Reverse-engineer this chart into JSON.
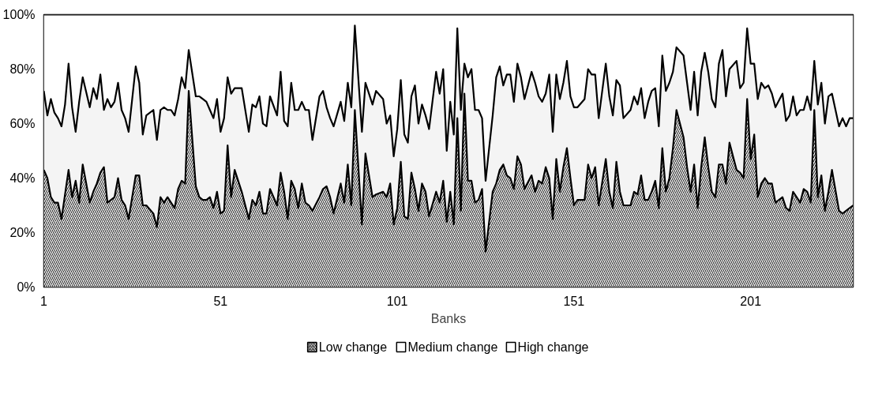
{
  "chart_data": {
    "type": "area",
    "stacked": true,
    "xlabel": "Banks",
    "x": [
      1,
      2,
      3,
      4,
      5,
      6,
      7,
      8,
      9,
      10,
      11,
      12,
      14,
      15,
      16,
      17,
      18,
      19,
      20,
      21,
      22,
      23,
      24,
      25,
      27,
      28,
      29,
      30,
      32,
      33,
      34,
      35,
      36,
      37,
      38,
      39,
      40,
      41,
      42,
      44,
      45,
      46,
      47,
      48,
      49,
      50,
      51,
      52,
      53,
      54,
      55,
      57,
      59,
      60,
      61,
      62,
      63,
      64,
      65,
      67,
      68,
      69,
      70,
      71,
      72,
      73,
      74,
      75,
      76,
      77,
      79,
      80,
      81,
      82,
      83,
      85,
      86,
      87,
      88,
      89,
      91,
      92,
      94,
      95,
      97,
      98,
      99,
      100,
      101,
      102,
      103,
      104,
      105,
      106,
      107,
      108,
      109,
      110,
      112,
      113,
      114,
      115,
      116,
      117,
      118,
      119,
      120,
      121,
      122,
      123,
      124,
      125,
      126,
      128,
      129,
      130,
      131,
      132,
      133,
      134,
      135,
      136,
      137,
      139,
      140,
      141,
      142,
      143,
      144,
      145,
      146,
      147,
      148,
      149,
      150,
      151,
      152,
      154,
      155,
      156,
      157,
      158,
      160,
      161,
      162,
      163,
      164,
      165,
      167,
      168,
      169,
      170,
      171,
      172,
      173,
      174,
      175,
      176,
      177,
      178,
      179,
      180,
      182,
      183,
      184,
      185,
      186,
      187,
      188,
      189,
      190,
      191,
      192,
      193,
      194,
      195,
      197,
      198,
      199,
      200,
      201,
      202,
      203,
      204,
      205,
      206,
      207,
      208,
      210,
      211,
      212,
      213,
      214,
      215,
      216,
      217,
      218,
      219,
      220,
      221,
      222,
      223,
      224,
      226,
      227,
      228,
      229,
      230
    ],
    "series": [
      {
        "name": "Low change",
        "color": "#000000",
        "values": [
          43,
          40,
          33,
          31,
          31,
          25,
          34,
          43,
          33,
          39,
          31,
          45,
          31,
          35,
          38,
          42,
          44,
          31,
          32,
          33,
          40,
          32,
          30,
          25,
          41,
          41,
          30,
          30,
          27,
          22,
          33,
          31,
          33,
          31,
          29,
          36,
          39,
          38,
          72,
          37,
          33,
          32,
          32,
          33,
          29,
          35,
          27,
          28,
          52,
          33,
          43,
          35,
          25,
          32,
          30,
          35,
          27,
          27,
          36,
          30,
          42,
          35,
          25,
          39,
          36,
          29,
          38,
          31,
          30,
          28,
          33,
          36,
          37,
          33,
          27,
          38,
          31,
          45,
          30,
          65,
          23,
          49,
          33,
          34,
          35,
          33,
          38,
          23,
          29,
          46,
          26,
          25,
          42,
          36,
          28,
          38,
          35,
          26,
          35,
          31,
          39,
          24,
          35,
          23,
          62,
          28,
          71,
          39,
          39,
          31,
          32,
          36,
          13,
          35,
          38,
          43,
          45,
          41,
          40,
          36,
          48,
          45,
          36,
          41,
          35,
          39,
          38,
          44,
          40,
          25,
          47,
          35,
          44,
          51,
          40,
          30,
          32,
          32,
          45,
          40,
          44,
          30,
          47,
          35,
          29,
          46,
          35,
          30,
          30,
          35,
          34,
          41,
          32,
          32,
          35,
          39,
          29,
          51,
          35,
          40,
          51,
          65,
          55,
          44,
          35,
          45,
          29,
          44,
          55,
          44,
          35,
          33,
          45,
          45,
          38,
          53,
          43,
          42,
          40,
          69,
          47,
          56,
          33,
          38,
          40,
          38,
          38,
          31,
          33,
          29,
          28,
          35,
          33,
          31,
          36,
          35,
          31,
          65,
          33,
          41,
          28,
          35,
          43,
          28,
          27,
          28,
          29,
          30
        ]
      },
      {
        "name": "Medium change",
        "color": "#000000",
        "values": [
          29,
          23,
          36,
          33,
          31,
          34,
          33,
          39,
          33,
          18,
          37,
          32,
          35,
          38,
          31,
          36,
          21,
          38,
          34,
          35,
          35,
          33,
          32,
          32,
          40,
          34,
          26,
          33,
          38,
          32,
          32,
          35,
          32,
          34,
          34,
          33,
          38,
          35,
          15,
          33,
          37,
          37,
          36,
          32,
          33,
          34,
          30,
          34,
          25,
          38,
          30,
          38,
          32,
          35,
          36,
          35,
          33,
          32,
          34,
          33,
          37,
          26,
          34,
          36,
          29,
          36,
          30,
          34,
          35,
          26,
          37,
          36,
          29,
          29,
          32,
          30,
          30,
          30,
          36,
          31,
          34,
          26,
          34,
          38,
          34,
          27,
          25,
          25,
          29,
          30,
          30,
          28,
          28,
          38,
          32,
          29,
          28,
          32,
          44,
          40,
          41,
          26,
          33,
          33,
          33,
          37,
          11,
          38,
          41,
          34,
          33,
          26,
          26,
          28,
          39,
          38,
          29,
          37,
          38,
          32,
          34,
          32,
          33,
          38,
          40,
          31,
          30,
          27,
          38,
          32,
          31,
          34,
          31,
          32,
          30,
          36,
          34,
          37,
          35,
          38,
          34,
          32,
          35,
          35,
          34,
          30,
          39,
          32,
          35,
          35,
          33,
          32,
          30,
          36,
          37,
          34,
          30,
          34,
          37,
          35,
          28,
          23,
          30,
          31,
          30,
          34,
          34,
          35,
          31,
          35,
          34,
          33,
          37,
          42,
          32,
          27,
          40,
          31,
          35,
          26,
          35,
          26,
          36,
          37,
          33,
          36,
          33,
          35,
          38,
          32,
          35,
          35,
          30,
          34,
          29,
          35,
          34,
          18,
          34,
          34,
          32,
          35,
          28,
          31,
          35,
          31,
          33,
          32
        ]
      },
      {
        "name": "High change",
        "color": "#000000",
        "values": [
          28,
          37,
          31,
          36,
          38,
          41,
          33,
          18,
          34,
          43,
          32,
          23,
          34,
          27,
          31,
          22,
          35,
          31,
          34,
          32,
          25,
          35,
          38,
          43,
          19,
          25,
          44,
          37,
          35,
          46,
          35,
          34,
          35,
          35,
          37,
          31,
          23,
          27,
          13,
          30,
          30,
          31,
          32,
          35,
          38,
          31,
          43,
          38,
          23,
          29,
          27,
          27,
          43,
          33,
          34,
          30,
          40,
          41,
          30,
          37,
          21,
          39,
          41,
          25,
          35,
          35,
          32,
          35,
          35,
          46,
          30,
          28,
          34,
          38,
          41,
          32,
          39,
          25,
          34,
          4,
          43,
          25,
          33,
          28,
          31,
          40,
          37,
          52,
          42,
          24,
          44,
          47,
          30,
          26,
          40,
          33,
          37,
          42,
          21,
          29,
          20,
          50,
          32,
          44,
          5,
          35,
          18,
          23,
          20,
          35,
          35,
          38,
          61,
          37,
          23,
          19,
          26,
          22,
          22,
          32,
          18,
          23,
          31,
          21,
          25,
          30,
          32,
          29,
          22,
          43,
          22,
          31,
          25,
          17,
          30,
          34,
          34,
          31,
          20,
          22,
          22,
          38,
          18,
          30,
          37,
          24,
          26,
          38,
          35,
          30,
          33,
          27,
          38,
          32,
          28,
          27,
          41,
          15,
          28,
          25,
          21,
          12,
          15,
          25,
          35,
          21,
          37,
          21,
          14,
          21,
          31,
          34,
          18,
          13,
          30,
          20,
          17,
          27,
          25,
          5,
          18,
          18,
          31,
          25,
          27,
          26,
          29,
          34,
          29,
          39,
          37,
          30,
          37,
          35,
          35,
          30,
          35,
          17,
          33,
          25,
          40,
          30,
          29,
          41,
          38,
          41,
          38,
          38
        ]
      }
    ],
    "xlim": [
      1,
      230
    ],
    "xticks": [
      1,
      51,
      101,
      151,
      201
    ],
    "ylim": [
      0,
      100
    ],
    "yticks": [
      {
        "value": 0,
        "label": "0%"
      },
      {
        "value": 20,
        "label": "20%"
      },
      {
        "value": 40,
        "label": "40%"
      },
      {
        "value": 60,
        "label": "60%"
      },
      {
        "value": 80,
        "label": "80%"
      },
      {
        "value": 100,
        "label": "100%"
      }
    ],
    "grid": false,
    "legend": "bottom"
  }
}
